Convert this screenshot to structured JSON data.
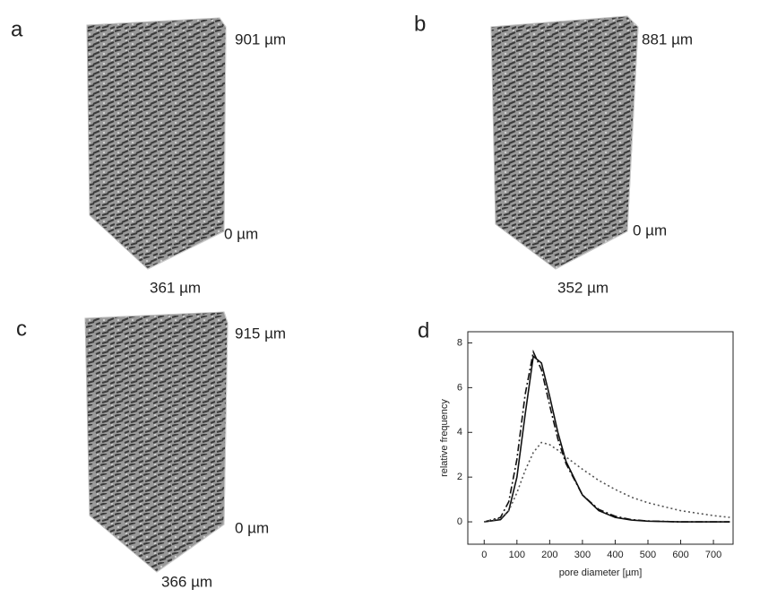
{
  "panels": [
    {
      "label": "a",
      "top": "901 µm",
      "bottom": "0 µm",
      "width": "361 µm"
    },
    {
      "label": "b",
      "top": "881 µm",
      "bottom": "0 µm",
      "width": "352 µm"
    },
    {
      "label": "c",
      "top": "915 µm",
      "bottom": "0 µm",
      "width": "366 µm"
    }
  ],
  "chart_label": "d",
  "chart_data": {
    "type": "line",
    "xlabel": "pore diameter [µm]",
    "ylabel": "relative frequency",
    "x": [
      0,
      50,
      75,
      100,
      125,
      150,
      175,
      200,
      225,
      250,
      300,
      350,
      400,
      450,
      500,
      600,
      700,
      750
    ],
    "series": [
      {
        "color": "#111111",
        "style": "solid",
        "values": [
          0,
          0.1,
          0.5,
          2.0,
          4.8,
          7.4,
          7.1,
          5.6,
          4.0,
          2.7,
          1.2,
          0.5,
          0.2,
          0.08,
          0.03,
          0,
          0,
          0
        ]
      },
      {
        "color": "#111111",
        "style": "dashdot",
        "values": [
          0,
          0.2,
          0.9,
          2.8,
          5.7,
          7.6,
          6.8,
          5.2,
          3.7,
          2.6,
          1.2,
          0.55,
          0.25,
          0.1,
          0.04,
          0,
          0,
          0
        ]
      },
      {
        "color": "#555555",
        "style": "dotted",
        "values": [
          0,
          0.15,
          0.5,
          1.3,
          2.3,
          3.1,
          3.55,
          3.45,
          3.2,
          2.9,
          2.35,
          1.85,
          1.45,
          1.1,
          0.85,
          0.5,
          0.28,
          0.2
        ]
      }
    ],
    "xlim": [
      -50,
      760
    ],
    "ylim": [
      -1,
      8.5
    ],
    "xticks": [
      0,
      100,
      200,
      300,
      400,
      500,
      600,
      700
    ],
    "yticks": [
      0,
      2,
      4,
      6,
      8
    ]
  }
}
